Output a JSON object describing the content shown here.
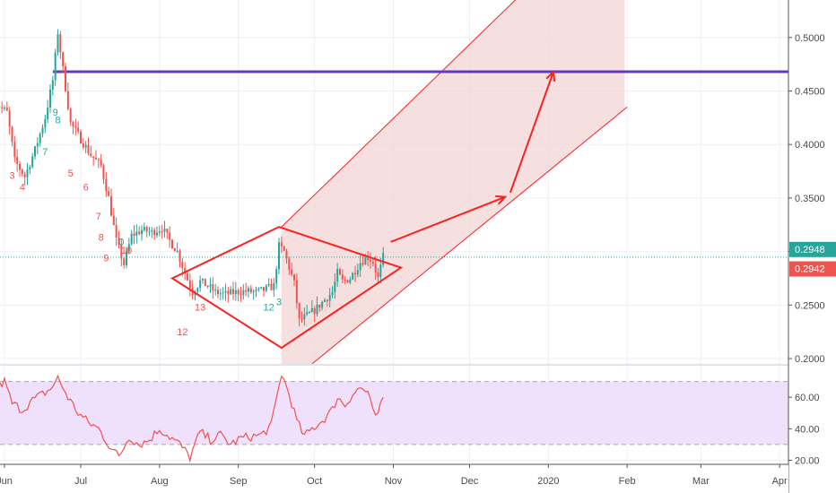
{
  "colors": {
    "up": "#26a69a",
    "down": "#ef5350",
    "drawing": "#ff1f1f",
    "resistance": "#673ab7",
    "channel_fill": "#f2d4d4",
    "rsi_line": "#ef5350",
    "rsi_band": "#efe0fb",
    "last_price_green": "#26a69a",
    "last_price_red": "#ef5350",
    "grid": "#eef0f4",
    "axis_text": "#4a4a4a"
  },
  "chart_data": [
    {
      "type": "candlestick",
      "title": "",
      "x_tick_labels": [
        "Jun",
        "Jul",
        "Aug",
        "Sep",
        "Oct",
        "Nov",
        "Dec",
        "2020",
        "Feb",
        "Mar",
        "Apr"
      ],
      "x_tick_dates": [
        "2019-06-01",
        "2019-07-01",
        "2019-08-01",
        "2019-09-01",
        "2019-10-01",
        "2019-11-01",
        "2019-12-01",
        "2020-01-01",
        "2020-02-01",
        "2020-03-01",
        "2020-04-01"
      ],
      "y_tick_labels": [
        "0.5000",
        "0.4500",
        "0.4000",
        "0.3500",
        "0.3000",
        "0.2500",
        "0.2000"
      ],
      "y_ticks": [
        0.5,
        0.45,
        0.4,
        0.35,
        0.3,
        0.25,
        0.2
      ],
      "ylim": [
        0.195,
        0.535
      ],
      "grid": true,
      "last_price_labels": [
        {
          "label": "0.2948",
          "value": 0.2948,
          "tone": "up"
        },
        {
          "label": "0.2942",
          "value": 0.2942,
          "tone": "down"
        }
      ],
      "price_path": [
        {
          "date": "2019-05-28",
          "price": 0.44
        },
        {
          "date": "2019-06-02",
          "price": 0.43
        },
        {
          "date": "2019-06-05",
          "price": 0.385
        },
        {
          "date": "2019-06-09",
          "price": 0.37
        },
        {
          "date": "2019-06-13",
          "price": 0.395
        },
        {
          "date": "2019-06-17",
          "price": 0.425
        },
        {
          "date": "2019-06-20",
          "price": 0.46
        },
        {
          "date": "2019-06-22",
          "price": 0.505
        },
        {
          "date": "2019-06-24",
          "price": 0.47
        },
        {
          "date": "2019-06-27",
          "price": 0.42
        },
        {
          "date": "2019-07-01",
          "price": 0.405
        },
        {
          "date": "2019-07-05",
          "price": 0.39
        },
        {
          "date": "2019-07-09",
          "price": 0.38
        },
        {
          "date": "2019-07-12",
          "price": 0.35
        },
        {
          "date": "2019-07-15",
          "price": 0.31
        },
        {
          "date": "2019-07-18",
          "price": 0.288
        },
        {
          "date": "2019-07-21",
          "price": 0.315
        },
        {
          "date": "2019-07-25",
          "price": 0.32
        },
        {
          "date": "2019-07-29",
          "price": 0.318
        },
        {
          "date": "2019-08-02",
          "price": 0.322
        },
        {
          "date": "2019-08-05",
          "price": 0.31
        },
        {
          "date": "2019-08-08",
          "price": 0.3
        },
        {
          "date": "2019-08-11",
          "price": 0.28
        },
        {
          "date": "2019-08-14",
          "price": 0.262
        },
        {
          "date": "2019-08-17",
          "price": 0.272
        },
        {
          "date": "2019-08-20",
          "price": 0.268
        },
        {
          "date": "2019-08-23",
          "price": 0.262
        },
        {
          "date": "2019-08-27",
          "price": 0.26
        },
        {
          "date": "2019-08-31",
          "price": 0.262
        },
        {
          "date": "2019-09-04",
          "price": 0.263
        },
        {
          "date": "2019-09-08",
          "price": 0.262
        },
        {
          "date": "2019-09-12",
          "price": 0.265
        },
        {
          "date": "2019-09-15",
          "price": 0.268
        },
        {
          "date": "2019-09-17",
          "price": 0.305
        },
        {
          "date": "2019-09-19",
          "price": 0.3
        },
        {
          "date": "2019-09-21",
          "price": 0.285
        },
        {
          "date": "2019-09-23",
          "price": 0.27
        },
        {
          "date": "2019-09-25",
          "price": 0.235
        },
        {
          "date": "2019-09-28",
          "price": 0.24
        },
        {
          "date": "2019-10-01",
          "price": 0.245
        },
        {
          "date": "2019-10-05",
          "price": 0.255
        },
        {
          "date": "2019-10-08",
          "price": 0.262
        },
        {
          "date": "2019-10-10",
          "price": 0.28
        },
        {
          "date": "2019-10-12",
          "price": 0.272
        },
        {
          "date": "2019-10-15",
          "price": 0.275
        },
        {
          "date": "2019-10-19",
          "price": 0.29
        },
        {
          "date": "2019-10-22",
          "price": 0.295
        },
        {
          "date": "2019-10-24",
          "price": 0.29
        },
        {
          "date": "2019-10-26",
          "price": 0.275
        },
        {
          "date": "2019-10-28",
          "price": 0.295
        }
      ],
      "seq_counts": [
        {
          "label": "3",
          "date": "2019-06-04",
          "price": 0.368,
          "tone": "down"
        },
        {
          "label": "4",
          "date": "2019-06-08",
          "price": 0.357,
          "tone": "down"
        },
        {
          "label": "7",
          "date": "2019-06-17",
          "price": 0.39,
          "tone": "up"
        },
        {
          "label": "9",
          "date": "2019-06-21",
          "price": 0.427,
          "tone": "up"
        },
        {
          "label": "8",
          "date": "2019-06-22",
          "price": 0.42,
          "tone": "up"
        },
        {
          "label": "5",
          "date": "2019-06-27",
          "price": 0.37,
          "tone": "down"
        },
        {
          "label": "6",
          "date": "2019-07-03",
          "price": 0.357,
          "tone": "down"
        },
        {
          "label": "7",
          "date": "2019-07-08",
          "price": 0.33,
          "tone": "down"
        },
        {
          "label": "8",
          "date": "2019-07-09",
          "price": 0.31,
          "tone": "down"
        },
        {
          "label": "9",
          "date": "2019-07-11",
          "price": 0.291,
          "tone": "down"
        },
        {
          "label": "10",
          "date": "2019-07-19",
          "price": 0.298,
          "tone": "down"
        },
        {
          "label": "0",
          "date": "2019-07-17",
          "price": 0.306,
          "tone": "up"
        },
        {
          "label": "12",
          "date": "2019-08-10",
          "price": 0.222,
          "tone": "down"
        },
        {
          "label": "13",
          "date": "2019-08-17",
          "price": 0.245,
          "tone": "down"
        },
        {
          "label": "12",
          "date": "2019-09-13",
          "price": 0.245,
          "tone": "up"
        },
        {
          "label": "3",
          "date": "2019-09-17",
          "price": 0.25,
          "tone": "up"
        }
      ],
      "resistance": {
        "value": 0.468,
        "from_date": "2019-06-20"
      },
      "diamond": [
        {
          "date": "2019-08-06",
          "price": 0.275
        },
        {
          "date": "2019-09-17",
          "price": 0.323
        },
        {
          "date": "2019-11-04",
          "price": 0.285
        },
        {
          "date": "2019-09-18",
          "price": 0.21
        }
      ],
      "channel": {
        "upper": [
          {
            "date": "2019-09-18",
            "price": 0.323
          },
          {
            "date": "2019-12-19",
            "price": 0.535
          }
        ],
        "lower": [
          {
            "date": "2019-09-30",
            "price": 0.195
          },
          {
            "date": "2020-02-01",
            "price": 0.435
          }
        ],
        "shade_to_date": "2020-01-31"
      },
      "arrows": [
        [
          {
            "date": "2019-10-31",
            "price": 0.309
          },
          {
            "date": "2019-12-15",
            "price": 0.351
          }
        ],
        [
          {
            "date": "2019-12-17",
            "price": 0.355
          },
          {
            "date": "2020-01-03",
            "price": 0.468
          }
        ]
      ]
    },
    {
      "type": "line",
      "title": "",
      "y_tick_labels": [
        "60.00",
        "40.00",
        "20.00"
      ],
      "y_ticks": [
        60,
        40,
        20
      ],
      "ylim": [
        18,
        80
      ],
      "band": [
        30,
        70
      ],
      "rsi_path": [
        {
          "date": "2019-05-28",
          "value": 65
        },
        {
          "date": "2019-06-01",
          "value": 70
        },
        {
          "date": "2019-06-04",
          "value": 56
        },
        {
          "date": "2019-06-08",
          "value": 52
        },
        {
          "date": "2019-06-12",
          "value": 58
        },
        {
          "date": "2019-06-16",
          "value": 62
        },
        {
          "date": "2019-06-19",
          "value": 65
        },
        {
          "date": "2019-06-22",
          "value": 72
        },
        {
          "date": "2019-06-26",
          "value": 60
        },
        {
          "date": "2019-06-30",
          "value": 50
        },
        {
          "date": "2019-07-04",
          "value": 44
        },
        {
          "date": "2019-07-08",
          "value": 40
        },
        {
          "date": "2019-07-12",
          "value": 30
        },
        {
          "date": "2019-07-16",
          "value": 22
        },
        {
          "date": "2019-07-20",
          "value": 35
        },
        {
          "date": "2019-07-24",
          "value": 30
        },
        {
          "date": "2019-07-28",
          "value": 33
        },
        {
          "date": "2019-08-01",
          "value": 40
        },
        {
          "date": "2019-08-05",
          "value": 35
        },
        {
          "date": "2019-08-09",
          "value": 30
        },
        {
          "date": "2019-08-13",
          "value": 22
        },
        {
          "date": "2019-08-17",
          "value": 38
        },
        {
          "date": "2019-08-21",
          "value": 33
        },
        {
          "date": "2019-08-25",
          "value": 36
        },
        {
          "date": "2019-08-29",
          "value": 30
        },
        {
          "date": "2019-09-02",
          "value": 34
        },
        {
          "date": "2019-09-06",
          "value": 35
        },
        {
          "date": "2019-09-10",
          "value": 36
        },
        {
          "date": "2019-09-14",
          "value": 42
        },
        {
          "date": "2019-09-18",
          "value": 75
        },
        {
          "date": "2019-09-21",
          "value": 62
        },
        {
          "date": "2019-09-24",
          "value": 45
        },
        {
          "date": "2019-09-27",
          "value": 35
        },
        {
          "date": "2019-09-30",
          "value": 40
        },
        {
          "date": "2019-10-04",
          "value": 45
        },
        {
          "date": "2019-10-08",
          "value": 52
        },
        {
          "date": "2019-10-10",
          "value": 60
        },
        {
          "date": "2019-10-13",
          "value": 55
        },
        {
          "date": "2019-10-16",
          "value": 62
        },
        {
          "date": "2019-10-19",
          "value": 66
        },
        {
          "date": "2019-10-22",
          "value": 63
        },
        {
          "date": "2019-10-24",
          "value": 50
        },
        {
          "date": "2019-10-26",
          "value": 48
        },
        {
          "date": "2019-10-28",
          "value": 60
        }
      ]
    }
  ]
}
